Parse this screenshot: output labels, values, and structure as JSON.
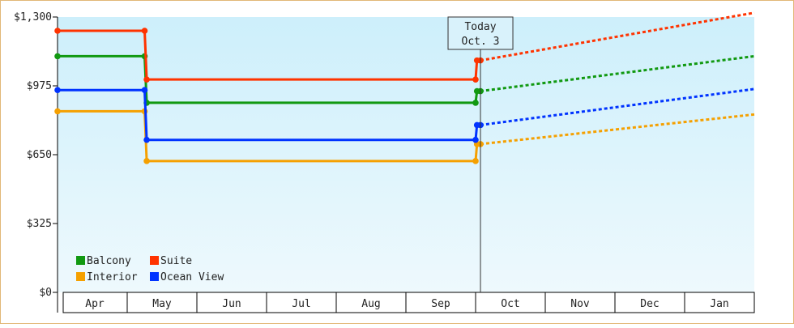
{
  "chart_data": {
    "type": "line",
    "today_label": [
      "Today",
      "Oct. 3"
    ],
    "months": [
      "Apr",
      "May",
      "Jun",
      "Jul",
      "Aug",
      "Sep",
      "Oct",
      "Nov",
      "Dec",
      "Jan"
    ],
    "yticks": [
      {
        "value": 0,
        "label": "$0"
      },
      {
        "value": 325,
        "label": "$325"
      },
      {
        "value": 650,
        "label": "$650"
      },
      {
        "value": 975,
        "label": "$975"
      },
      {
        "value": 1300,
        "label": "$1,300"
      }
    ],
    "ylim": [
      0,
      1300
    ],
    "xlim": [
      0,
      10
    ],
    "today_x": 6.07,
    "series": [
      {
        "name": "Balcony",
        "color": "#119911",
        "points": [
          [
            0,
            1115
          ],
          [
            1.25,
            1115
          ],
          [
            1.28,
            895
          ],
          [
            6.0,
            895
          ],
          [
            6.02,
            950
          ],
          [
            6.07,
            950
          ]
        ],
        "forecast": [
          [
            6.07,
            950
          ],
          [
            10.0,
            1115
          ]
        ]
      },
      {
        "name": "Suite",
        "color": "#ff3300",
        "points": [
          [
            0,
            1235
          ],
          [
            1.25,
            1235
          ],
          [
            1.28,
            1005
          ],
          [
            6.0,
            1005
          ],
          [
            6.02,
            1095
          ],
          [
            6.07,
            1095
          ]
        ],
        "forecast": [
          [
            6.07,
            1095
          ],
          [
            10.0,
            1320
          ]
        ]
      },
      {
        "name": "Interior",
        "color": "#f5a000",
        "points": [
          [
            0,
            855
          ],
          [
            1.25,
            855
          ],
          [
            1.28,
            620
          ],
          [
            6.0,
            620
          ],
          [
            6.02,
            700
          ],
          [
            6.07,
            700
          ]
        ],
        "forecast": [
          [
            6.07,
            700
          ],
          [
            10.0,
            840
          ]
        ]
      },
      {
        "name": "Ocean View",
        "color": "#0033ff",
        "points": [
          [
            0,
            955
          ],
          [
            1.25,
            955
          ],
          [
            1.28,
            720
          ],
          [
            6.0,
            720
          ],
          [
            6.02,
            790
          ],
          [
            6.07,
            790
          ]
        ],
        "forecast": [
          [
            6.07,
            790
          ],
          [
            10.0,
            960
          ]
        ]
      }
    ],
    "legend_position": "bottom-left",
    "grid": false
  }
}
